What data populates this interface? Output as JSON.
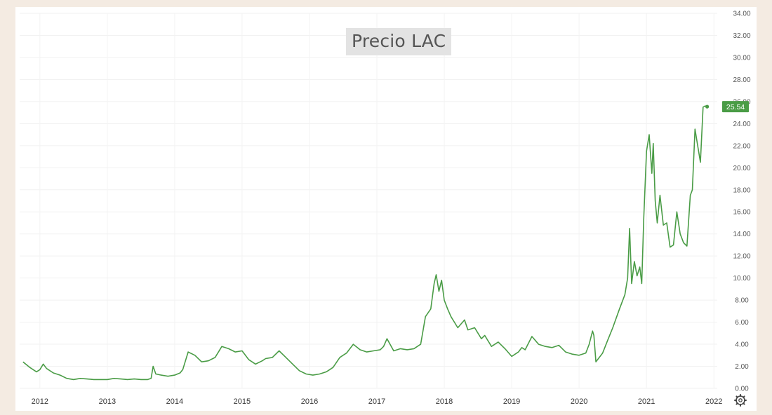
{
  "chart_data": {
    "type": "line",
    "title": "Precio LAC",
    "xlabel": "",
    "ylabel": "",
    "x_ticks": [
      "2012",
      "2013",
      "2014",
      "2015",
      "2016",
      "2017",
      "2018",
      "2019",
      "2020",
      "2021",
      "2022"
    ],
    "y_ticks": [
      "0.00",
      "2.00",
      "4.00",
      "6.00",
      "8.00",
      "10.00",
      "12.00",
      "14.00",
      "16.00",
      "18.00",
      "20.00",
      "22.00",
      "24.00",
      "26.00",
      "28.00",
      "30.00",
      "32.00",
      "34.00"
    ],
    "ylim": [
      0,
      34
    ],
    "xlim": [
      2011.7,
      2022.05
    ],
    "grid": true,
    "axis_side": "right",
    "last_value_label": "25.54",
    "colors": {
      "line": "#4a9c46",
      "badge": "#4a9c46",
      "title_bg": "#e3e3e3"
    },
    "settings_icon": "gear-icon",
    "series": [
      {
        "x": [
          2011.75,
          2011.85,
          2011.95,
          2012.0,
          2012.05,
          2012.1,
          2012.2,
          2012.3,
          2012.4,
          2012.5,
          2012.6,
          2012.7,
          2012.8,
          2012.9,
          2013.0,
          2013.1,
          2013.2,
          2013.3,
          2013.4,
          2013.5,
          2013.6,
          2013.65,
          2013.68,
          2013.72,
          2013.8,
          2013.9,
          2014.0,
          2014.08,
          2014.12,
          2014.2,
          2014.3,
          2014.4,
          2014.5,
          2014.6,
          2014.7,
          2014.8,
          2014.9,
          2015.0,
          2015.1,
          2015.2,
          2015.3,
          2015.35,
          2015.45,
          2015.55,
          2015.65,
          2015.75,
          2015.85,
          2015.95,
          2016.05,
          2016.15,
          2016.25,
          2016.35,
          2016.45,
          2016.55,
          2016.65,
          2016.75,
          2016.85,
          2016.95,
          2017.05,
          2017.1,
          2017.15,
          2017.25,
          2017.35,
          2017.45,
          2017.55,
          2017.65,
          2017.72,
          2017.8,
          2017.85,
          2017.88,
          2017.92,
          2017.96,
          2018.0,
          2018.05,
          2018.1,
          2018.2,
          2018.3,
          2018.35,
          2018.45,
          2018.55,
          2018.6,
          2018.7,
          2018.8,
          2018.9,
          2019.0,
          2019.1,
          2019.15,
          2019.2,
          2019.3,
          2019.4,
          2019.5,
          2019.6,
          2019.7,
          2019.8,
          2019.9,
          2020.0,
          2020.1,
          2020.15,
          2020.2,
          2020.22,
          2020.25,
          2020.3,
          2020.35,
          2020.42,
          2020.5,
          2020.6,
          2020.68,
          2020.72,
          2020.75,
          2020.78,
          2020.82,
          2020.86,
          2020.9,
          2020.93,
          2020.96,
          2021.0,
          2021.04,
          2021.08,
          2021.1,
          2021.13,
          2021.16,
          2021.2,
          2021.25,
          2021.3,
          2021.35,
          2021.4,
          2021.45,
          2021.5,
          2021.55,
          2021.6,
          2021.65,
          2021.68,
          2021.72,
          2021.76,
          2021.8,
          2021.84,
          2021.87,
          2021.9
        ],
        "y": [
          2.4,
          1.9,
          1.5,
          1.7,
          2.2,
          1.8,
          1.4,
          1.2,
          0.9,
          0.8,
          0.9,
          0.85,
          0.8,
          0.8,
          0.8,
          0.9,
          0.85,
          0.8,
          0.85,
          0.8,
          0.8,
          0.9,
          2.0,
          1.3,
          1.2,
          1.1,
          1.2,
          1.4,
          1.7,
          3.3,
          3.0,
          2.4,
          2.5,
          2.8,
          3.8,
          3.6,
          3.3,
          3.4,
          2.6,
          2.2,
          2.5,
          2.7,
          2.8,
          3.4,
          2.8,
          2.2,
          1.6,
          1.3,
          1.2,
          1.3,
          1.5,
          1.9,
          2.8,
          3.2,
          4.0,
          3.5,
          3.3,
          3.4,
          3.5,
          3.8,
          4.5,
          3.4,
          3.6,
          3.5,
          3.6,
          4.0,
          6.5,
          7.2,
          9.5,
          10.3,
          8.8,
          9.8,
          8.0,
          7.2,
          6.5,
          5.5,
          6.2,
          5.3,
          5.5,
          4.5,
          4.8,
          3.8,
          4.2,
          3.6,
          2.9,
          3.3,
          3.7,
          3.5,
          4.7,
          4.0,
          3.8,
          3.7,
          3.9,
          3.3,
          3.1,
          3.0,
          3.2,
          4.0,
          5.2,
          4.8,
          2.4,
          2.8,
          3.2,
          4.3,
          5.5,
          7.2,
          8.5,
          10.0,
          14.5,
          9.5,
          11.5,
          10.2,
          11.0,
          9.5,
          15.5,
          21.5,
          23.0,
          19.5,
          22.2,
          17.0,
          15.0,
          17.5,
          14.8,
          15.0,
          12.8,
          13.0,
          16.0,
          14.0,
          13.2,
          12.9,
          17.5,
          18.0,
          23.5,
          22.0,
          20.5,
          25.5,
          25.6,
          25.54
        ]
      }
    ]
  }
}
